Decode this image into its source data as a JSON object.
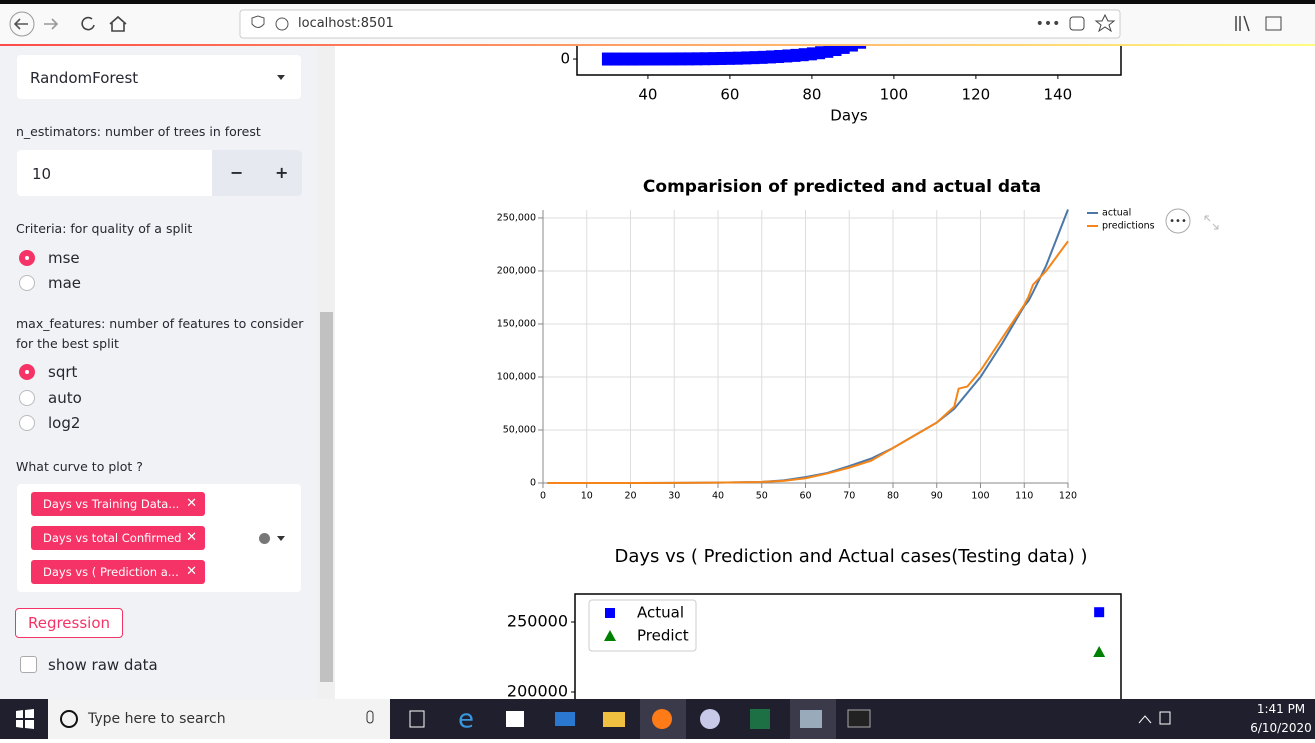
{
  "browser": {
    "url": "localhost:8501"
  },
  "sidebar": {
    "model_select": "RandomForest",
    "n_estimators_label": "n_estimators: number of trees in forest",
    "n_estimators_value": "10",
    "decrement": "−",
    "increment": "+",
    "criteria_label": "Criteria: for quality of a split",
    "criteria_options": [
      "mse",
      "mae"
    ],
    "max_features_label": "max_features: number of features to consider for the best split",
    "max_features_options": [
      "sqrt",
      "auto",
      "log2"
    ],
    "curve_label": "What curve to plot ?",
    "curve_tags": [
      "Days vs Training Data...",
      "Days vs total Confirmed",
      "Days vs ( Prediction a..."
    ],
    "button": "Regression",
    "checkbox": "show raw data"
  },
  "chart_data": [
    {
      "type": "scatter",
      "xlabel": "Days",
      "x": [
        30,
        32,
        34,
        36,
        38,
        40,
        42,
        44,
        46,
        48,
        50,
        52,
        54,
        56,
        58,
        60,
        62,
        64,
        66,
        68,
        70,
        72,
        74,
        76,
        78,
        80,
        82,
        84,
        86,
        88,
        90,
        92,
        94,
        96
      ],
      "series": [
        {
          "color": "#0000ff",
          "values": [
            0,
            0,
            0,
            0,
            10,
            20,
            30,
            40,
            60,
            80,
            100,
            150,
            200,
            300,
            400,
            500,
            600,
            800,
            1000,
            1200,
            1500,
            1800,
            2200,
            2600,
            3100,
            3700,
            4500,
            5500,
            6800,
            8300,
            10000,
            12000,
            14500,
            17000
          ]
        }
      ],
      "xlim": [
        22.7,
        155.4
      ],
      "ylim": [
        -11400,
        270000
      ],
      "xticks": [
        40,
        60,
        80,
        100,
        120,
        140
      ],
      "yticks": [
        0
      ]
    },
    {
      "type": "line",
      "title": "Comparision of predicted and actual data",
      "x": [
        1,
        10,
        20,
        30,
        40,
        50,
        55,
        60,
        65,
        70,
        75,
        80,
        85,
        90,
        94,
        95,
        96,
        97,
        100,
        105,
        110,
        111,
        112,
        115,
        120
      ],
      "series": [
        {
          "name": "actual",
          "color": "#4c78a8",
          "values": [
            0,
            0,
            0,
            100,
            300,
            1000,
            2500,
            5500,
            9500,
            16000,
            23000,
            33000,
            45000,
            57000,
            70000,
            75000,
            80000,
            85000,
            100000,
            132000,
            167000,
            172000,
            180000,
            205000,
            258000
          ]
        },
        {
          "name": "predictions",
          "color": "#f58518",
          "values": [
            0,
            0,
            0,
            100,
            300,
            1000,
            2000,
            4500,
            9000,
            14500,
            21000,
            33000,
            45000,
            57000,
            72000,
            89000,
            90000,
            91000,
            106000,
            137000,
            168000,
            176000,
            187000,
            200000,
            228000
          ]
        }
      ],
      "xlim": [
        0,
        120
      ],
      "ylim": [
        0,
        257500
      ],
      "xticks": [
        0,
        10,
        20,
        30,
        40,
        50,
        60,
        70,
        80,
        90,
        100,
        110,
        120
      ],
      "yticks": [
        0,
        {
          "value": 50000,
          "label": "50,000"
        },
        {
          "value": 100000,
          "label": "100,000"
        },
        {
          "value": 150000,
          "label": "150,000"
        },
        {
          "value": 200000,
          "label": "200,000"
        },
        {
          "value": 250000,
          "label": "250,000"
        }
      ],
      "grid": true,
      "legend": "right"
    },
    {
      "type": "scatter",
      "title": "Days vs ( Prediction and Actual cases(Testing data) )",
      "x": [
        120
      ],
      "series": [
        {
          "name": "Actual",
          "color": "#0000ff",
          "marker": "square",
          "values": [
            257000
          ]
        },
        {
          "name": "Predict",
          "color": "#008000",
          "marker": "triangle",
          "values": [
            228600
          ]
        }
      ],
      "xlim": [
        0,
        125
      ],
      "ylim": [
        190000,
        270000
      ],
      "yticks": [
        200000,
        250000
      ],
      "legend": "upper left"
    }
  ],
  "taskbar": {
    "search": "Type here to search",
    "time": "1:41 PM",
    "date": "6/10/2020"
  }
}
